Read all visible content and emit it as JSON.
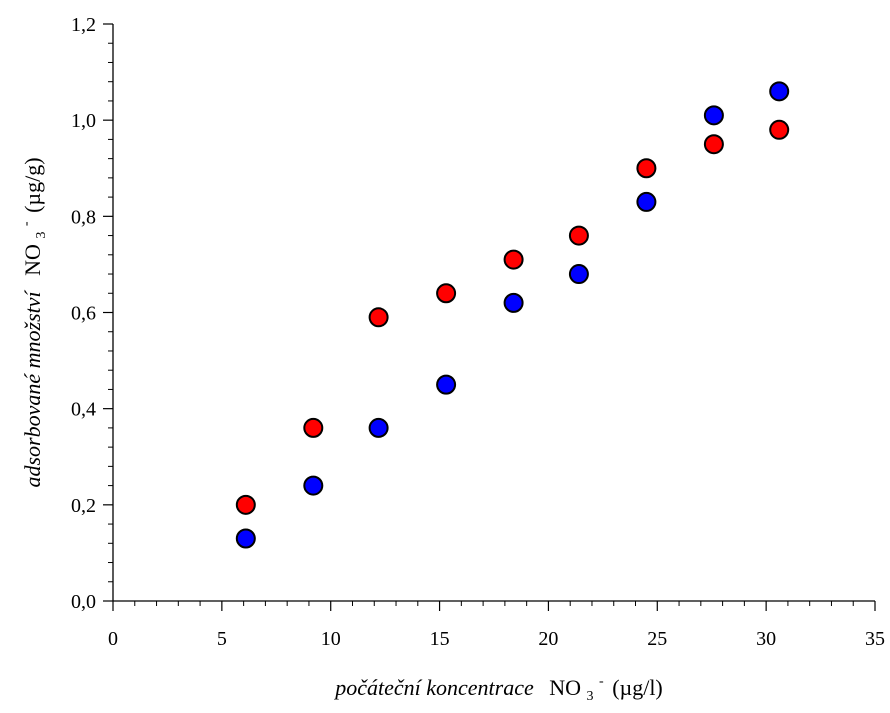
{
  "chart_data": {
    "type": "scatter",
    "title": "",
    "xlabel": {
      "italic": "počáteční koncentrace",
      "formula": "NO",
      "subscript": "3",
      "superscript": "-",
      "unit": "(µg/l)"
    },
    "ylabel": {
      "italic": "adsorbované množství",
      "formula": "NO",
      "subscript": "3",
      "superscript": "-",
      "unit": "(µg/g)"
    },
    "xlim": [
      0,
      35
    ],
    "ylim": [
      0,
      1.2
    ],
    "x_ticks": [
      "0",
      "5",
      "10",
      "15",
      "20",
      "25",
      "30",
      "35"
    ],
    "x_tick_values": [
      0,
      5,
      10,
      15,
      20,
      25,
      30,
      35
    ],
    "y_ticks": [
      "0,0",
      "0,2",
      "0,4",
      "0,6",
      "0,8",
      "1,0",
      "1,2"
    ],
    "y_tick_values": [
      0,
      0.2,
      0.4,
      0.6,
      0.8,
      1.0,
      1.2
    ],
    "x_minor_step": 1,
    "y_minor_step": 0.04,
    "grid": false,
    "legend": "none",
    "series": [
      {
        "color": "#ff0000",
        "x": [
          6.1,
          9.2,
          12.2,
          15.3,
          18.4,
          21.4,
          24.5,
          27.6,
          30.6
        ],
        "y": [
          0.2,
          0.36,
          0.59,
          0.64,
          0.71,
          0.76,
          0.9,
          0.95,
          0.98
        ]
      },
      {
        "color": "#0000ff",
        "x": [
          6.1,
          9.2,
          12.2,
          15.3,
          18.4,
          21.4,
          24.5,
          27.6,
          30.6
        ],
        "y": [
          0.13,
          0.24,
          0.36,
          0.45,
          0.62,
          0.68,
          0.83,
          1.01,
          1.06
        ]
      }
    ]
  }
}
